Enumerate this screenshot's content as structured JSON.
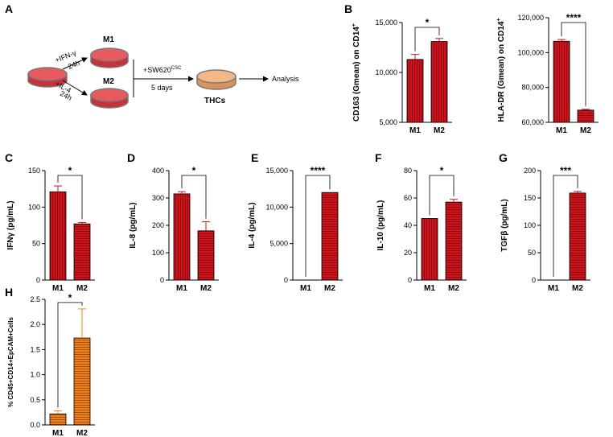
{
  "panels": {
    "A": "A",
    "B": "B",
    "C": "C",
    "D": "D",
    "E": "E",
    "F": "F",
    "G": "G",
    "H": "H"
  },
  "schematic": {
    "m1_label": "M1",
    "m2_label": "M2",
    "ifn_label": "+IFN-γ",
    "il4_label": "+IL-4",
    "time_top": "24h",
    "time_bottom": "24h",
    "coculture": "+SW620",
    "coculture_sup": "CSC",
    "duration": "5 days",
    "thcs_label": "THCs",
    "analysis_label": "Analysis",
    "colors": {
      "dish_red": "#c8323a",
      "dish_rim": "#7a7a7a",
      "dish_orange": "#e8a870",
      "arrow": "#000000"
    }
  },
  "chart_data": [
    {
      "id": "B1",
      "type": "bar",
      "categories": [
        "M1",
        "M2"
      ],
      "values": [
        11300,
        13100
      ],
      "errors": [
        500,
        300
      ],
      "ylabel_main": "CD163 (Gmean) on CD14",
      "ylabel_sup": "+",
      "ylim": [
        5000,
        15000
      ],
      "ticks": [
        5000,
        10000,
        15000
      ],
      "tick_labels": [
        "5,000",
        "10,000",
        "15,000"
      ],
      "significance": "*",
      "colors": [
        "#d0121b",
        "#d0121b"
      ],
      "patterns": [
        "vertical",
        "vertical"
      ]
    },
    {
      "id": "B2",
      "type": "bar",
      "categories": [
        "M1",
        "M2"
      ],
      "values": [
        106500,
        67000
      ],
      "errors": [
        1000,
        500
      ],
      "ylabel_main": "HLA-DR (Gmean) on CD14",
      "ylabel_sup": "+",
      "ylim": [
        60000,
        120000
      ],
      "ticks": [
        60000,
        80000,
        100000,
        120000
      ],
      "tick_labels": [
        "60,000",
        "80,000",
        "100,000",
        "120,000"
      ],
      "significance": "****",
      "colors": [
        "#d0121b",
        "#d0121b"
      ],
      "patterns": [
        "vertical",
        "horizontal"
      ]
    },
    {
      "id": "C",
      "type": "bar",
      "categories": [
        "M1",
        "M2"
      ],
      "values": [
        121,
        77
      ],
      "errors": [
        8,
        2
      ],
      "ylabel_main": "IFNγ (pg/mL)",
      "ylabel_sup": "",
      "ylim": [
        0,
        150
      ],
      "ticks": [
        0,
        50,
        100,
        150
      ],
      "tick_labels": [
        "0",
        "50",
        "100",
        "150"
      ],
      "significance": "*",
      "colors": [
        "#d0121b",
        "#d0121b"
      ],
      "patterns": [
        "vertical",
        "horizontal"
      ]
    },
    {
      "id": "D",
      "type": "bar",
      "categories": [
        "M1",
        "M2"
      ],
      "values": [
        315,
        180
      ],
      "errors": [
        8,
        33
      ],
      "ylabel_main": "IL-8 (pg/mL)",
      "ylabel_sup": "",
      "ylim": [
        0,
        400
      ],
      "ticks": [
        0,
        100,
        200,
        300,
        400
      ],
      "tick_labels": [
        "0",
        "100",
        "200",
        "300",
        "400"
      ],
      "significance": "*",
      "colors": [
        "#d0121b",
        "#d0121b"
      ],
      "patterns": [
        "vertical",
        "horizontal"
      ]
    },
    {
      "id": "E",
      "type": "bar",
      "categories": [
        "M1",
        "M2"
      ],
      "values": [
        0,
        12000
      ],
      "errors": [
        0,
        0
      ],
      "ylabel_main": "IL-4 (pg/mL)",
      "ylabel_sup": "",
      "ylim": [
        0,
        15000
      ],
      "ticks": [
        0,
        5000,
        10000,
        15000
      ],
      "tick_labels": [
        "0",
        "5,000",
        "10,000",
        "15,000"
      ],
      "significance": "****",
      "colors": [
        "#d0121b",
        "#d0121b"
      ],
      "patterns": [
        "vertical",
        "horizontal"
      ]
    },
    {
      "id": "F",
      "type": "bar",
      "categories": [
        "M1",
        "M2"
      ],
      "values": [
        45,
        57
      ],
      "errors": [
        0,
        2
      ],
      "ylabel_main": "IL-10 (pg/mL)",
      "ylabel_sup": "",
      "ylim": [
        0,
        80
      ],
      "ticks": [
        0,
        20,
        40,
        60,
        80
      ],
      "tick_labels": [
        "0",
        "20",
        "40",
        "60",
        "80"
      ],
      "significance": "*",
      "colors": [
        "#d0121b",
        "#d0121b"
      ],
      "patterns": [
        "vertical",
        "horizontal"
      ]
    },
    {
      "id": "G",
      "type": "bar",
      "categories": [
        "M1",
        "M2"
      ],
      "values": [
        0,
        159
      ],
      "errors": [
        0,
        3
      ],
      "ylabel_main": "TGFβ (pg/mL)",
      "ylabel_sup": "",
      "ylim": [
        0,
        200
      ],
      "ticks": [
        0,
        50,
        100,
        150,
        200
      ],
      "tick_labels": [
        "0",
        "50",
        "100",
        "150",
        "200"
      ],
      "significance": "***",
      "colors": [
        "#d0121b",
        "#d0121b"
      ],
      "patterns": [
        "vertical",
        "horizontal"
      ]
    },
    {
      "id": "H",
      "type": "bar",
      "categories": [
        "M1",
        "M2"
      ],
      "values": [
        0.22,
        1.73
      ],
      "errors": [
        0.06,
        0.58
      ],
      "ylabel_main": "% CD45+CD14+EpCAM+Cells",
      "ylabel_sup": "",
      "ylim": [
        0,
        2.5
      ],
      "ticks": [
        0,
        0.5,
        1.0,
        1.5,
        2.0,
        2.5
      ],
      "tick_labels": [
        "0.0",
        "0.5",
        "1.0",
        "1.5",
        "2.0",
        "2.5"
      ],
      "significance": "*",
      "colors": [
        "#f07f1a",
        "#f07f1a"
      ],
      "patterns": [
        "horizontal",
        "horizontal"
      ]
    }
  ]
}
